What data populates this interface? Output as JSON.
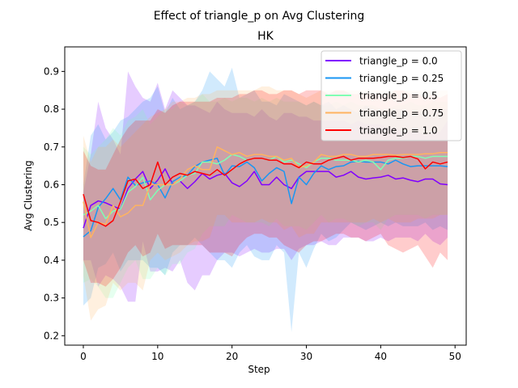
{
  "chart_data": {
    "type": "line",
    "title": "Effect of triangle_p on  Avg Clustering",
    "subtitle": "HK",
    "xlabel": "Step",
    "ylabel": "Avg Clustering",
    "xlim": [
      -2.5,
      51.5
    ],
    "ylim": [
      0.175,
      0.965
    ],
    "xticks": [
      0,
      10,
      20,
      30,
      40,
      50
    ],
    "yticks": [
      0.2,
      0.3,
      0.4,
      0.5,
      0.6,
      0.7,
      0.8,
      0.9
    ],
    "grid": false,
    "legend_position": "upper right",
    "x": [
      0,
      1,
      2,
      3,
      4,
      5,
      6,
      7,
      8,
      9,
      10,
      11,
      12,
      13,
      14,
      15,
      16,
      17,
      18,
      19,
      20,
      21,
      22,
      23,
      24,
      25,
      26,
      27,
      28,
      29,
      30,
      31,
      32,
      33,
      34,
      35,
      36,
      37,
      38,
      39,
      40,
      41,
      42,
      43,
      44,
      45,
      46,
      47,
      48,
      49
    ],
    "series": [
      {
        "name": "triangle_p = 0.0",
        "color": "#8000ff",
        "values": [
          0.485,
          0.545,
          0.557,
          0.552,
          0.543,
          0.535,
          0.59,
          0.615,
          0.635,
          0.59,
          0.612,
          0.642,
          0.602,
          0.61,
          0.59,
          0.608,
          0.63,
          0.615,
          0.625,
          0.63,
          0.605,
          0.595,
          0.61,
          0.635,
          0.6,
          0.6,
          0.62,
          0.6,
          0.59,
          0.62,
          0.635,
          0.635,
          0.635,
          0.635,
          0.62,
          0.625,
          0.635,
          0.62,
          0.615,
          0.618,
          0.62,
          0.625,
          0.615,
          0.618,
          0.612,
          0.608,
          0.615,
          0.615,
          0.602,
          0.6
        ],
        "upper": [
          0.58,
          0.68,
          0.82,
          0.75,
          0.72,
          0.68,
          0.9,
          0.86,
          0.83,
          0.82,
          0.87,
          0.8,
          0.85,
          0.83,
          0.81,
          0.81,
          0.8,
          0.79,
          0.82,
          0.8,
          0.79,
          0.79,
          0.79,
          0.78,
          0.8,
          0.78,
          0.77,
          0.79,
          0.79,
          0.78,
          0.78,
          0.77,
          0.77,
          0.77,
          0.77,
          0.77,
          0.76,
          0.77,
          0.76,
          0.76,
          0.76,
          0.75,
          0.75,
          0.74,
          0.74,
          0.74,
          0.73,
          0.74,
          0.74,
          0.77
        ],
        "lower": [
          0.4,
          0.4,
          0.33,
          0.36,
          0.35,
          0.33,
          0.29,
          0.29,
          0.45,
          0.37,
          0.37,
          0.38,
          0.37,
          0.4,
          0.34,
          0.32,
          0.36,
          0.36,
          0.4,
          0.42,
          0.42,
          0.41,
          0.42,
          0.43,
          0.42,
          0.42,
          0.43,
          0.43,
          0.4,
          0.43,
          0.44,
          0.44,
          0.45,
          0.44,
          0.44,
          0.46,
          0.46,
          0.46,
          0.45,
          0.45,
          0.46,
          0.45,
          0.46,
          0.46,
          0.46,
          0.45,
          0.47,
          0.45,
          0.44,
          0.46
        ]
      },
      {
        "name": "triangle_p = 0.25",
        "color": "#1996f3",
        "values": [
          0.462,
          0.478,
          0.54,
          0.563,
          0.59,
          0.56,
          0.62,
          0.598,
          0.605,
          0.61,
          0.6,
          0.565,
          0.608,
          0.62,
          0.625,
          0.648,
          0.66,
          0.665,
          0.67,
          0.625,
          0.65,
          0.648,
          0.66,
          0.645,
          0.61,
          0.63,
          0.645,
          0.635,
          0.55,
          0.62,
          0.6,
          0.63,
          0.65,
          0.64,
          0.648,
          0.65,
          0.66,
          0.662,
          0.66,
          0.66,
          0.66,
          0.655,
          0.665,
          0.655,
          0.648,
          0.65,
          0.65,
          0.65,
          0.65,
          0.648
        ],
        "upper": [
          0.6,
          0.73,
          0.76,
          0.72,
          0.74,
          0.77,
          0.78,
          0.8,
          0.82,
          0.83,
          0.86,
          0.79,
          0.83,
          0.8,
          0.81,
          0.82,
          0.85,
          0.9,
          0.88,
          0.86,
          0.91,
          0.83,
          0.84,
          0.85,
          0.82,
          0.82,
          0.81,
          0.84,
          0.83,
          0.82,
          0.81,
          0.82,
          0.81,
          0.82,
          0.8,
          0.81,
          0.8,
          0.79,
          0.81,
          0.8,
          0.8,
          0.79,
          0.8,
          0.8,
          0.79,
          0.79,
          0.79,
          0.8,
          0.8,
          0.8
        ],
        "lower": [
          0.28,
          0.3,
          0.38,
          0.39,
          0.42,
          0.37,
          0.4,
          0.4,
          0.4,
          0.38,
          0.38,
          0.36,
          0.42,
          0.44,
          0.44,
          0.46,
          0.44,
          0.42,
          0.4,
          0.4,
          0.38,
          0.42,
          0.44,
          0.41,
          0.4,
          0.4,
          0.44,
          0.42,
          0.21,
          0.42,
          0.38,
          0.43,
          0.47,
          0.45,
          0.46,
          0.48,
          0.5,
          0.49,
          0.48,
          0.49,
          0.5,
          0.49,
          0.5,
          0.49,
          0.49,
          0.49,
          0.5,
          0.48,
          0.49,
          0.48
        ]
      },
      {
        "name": "triangle_p = 0.5",
        "color": "#80ffb4",
        "values": [
          0.52,
          0.53,
          0.545,
          0.51,
          0.53,
          0.535,
          0.58,
          0.595,
          0.62,
          0.56,
          0.585,
          0.6,
          0.6,
          0.61,
          0.625,
          0.63,
          0.66,
          0.66,
          0.655,
          0.665,
          0.68,
          0.675,
          0.665,
          0.67,
          0.67,
          0.665,
          0.675,
          0.66,
          0.665,
          0.655,
          0.645,
          0.66,
          0.67,
          0.67,
          0.665,
          0.665,
          0.665,
          0.66,
          0.665,
          0.66,
          0.64,
          0.665,
          0.67,
          0.67,
          0.675,
          0.675,
          0.67,
          0.675,
          0.675,
          0.675
        ],
        "upper": [
          0.7,
          0.68,
          0.7,
          0.72,
          0.75,
          0.73,
          0.77,
          0.78,
          0.8,
          0.76,
          0.78,
          0.8,
          0.8,
          0.82,
          0.81,
          0.82,
          0.84,
          0.82,
          0.82,
          0.83,
          0.82,
          0.83,
          0.83,
          0.82,
          0.83,
          0.82,
          0.83,
          0.82,
          0.82,
          0.82,
          0.81,
          0.82,
          0.81,
          0.81,
          0.82,
          0.81,
          0.82,
          0.81,
          0.81,
          0.81,
          0.8,
          0.8,
          0.81,
          0.81,
          0.82,
          0.81,
          0.81,
          0.82,
          0.82,
          0.82
        ],
        "lower": [
          0.34,
          0.35,
          0.33,
          0.3,
          0.3,
          0.34,
          0.38,
          0.4,
          0.35,
          0.35,
          0.38,
          0.36,
          0.39,
          0.39,
          0.42,
          0.43,
          0.47,
          0.49,
          0.49,
          0.49,
          0.52,
          0.51,
          0.5,
          0.5,
          0.5,
          0.49,
          0.51,
          0.49,
          0.49,
          0.49,
          0.48,
          0.5,
          0.52,
          0.5,
          0.51,
          0.51,
          0.5,
          0.49,
          0.5,
          0.5,
          0.48,
          0.51,
          0.52,
          0.52,
          0.52,
          0.52,
          0.51,
          0.52,
          0.52,
          0.52
        ]
      },
      {
        "name": "triangle_p = 0.75",
        "color": "#ffb360",
        "values": [
          0.555,
          0.46,
          0.5,
          0.495,
          0.545,
          0.515,
          0.525,
          0.545,
          0.545,
          0.6,
          0.6,
          0.6,
          0.6,
          0.615,
          0.64,
          0.65,
          0.64,
          0.64,
          0.7,
          0.69,
          0.68,
          0.685,
          0.675,
          0.68,
          0.68,
          0.675,
          0.675,
          0.665,
          0.67,
          0.645,
          0.65,
          0.66,
          0.68,
          0.675,
          0.675,
          0.68,
          0.68,
          0.675,
          0.675,
          0.68,
          0.68,
          0.68,
          0.678,
          0.68,
          0.68,
          0.68,
          0.682,
          0.682,
          0.685,
          0.685
        ],
        "upper": [
          0.73,
          0.66,
          0.7,
          0.7,
          0.72,
          0.7,
          0.72,
          0.74,
          0.76,
          0.78,
          0.79,
          0.8,
          0.82,
          0.82,
          0.83,
          0.83,
          0.84,
          0.84,
          0.85,
          0.85,
          0.85,
          0.85,
          0.85,
          0.85,
          0.86,
          0.86,
          0.85,
          0.85,
          0.85,
          0.84,
          0.83,
          0.84,
          0.85,
          0.85,
          0.85,
          0.85,
          0.85,
          0.85,
          0.85,
          0.85,
          0.85,
          0.85,
          0.85,
          0.85,
          0.85,
          0.85,
          0.85,
          0.85,
          0.85,
          0.85
        ],
        "lower": [
          0.36,
          0.24,
          0.27,
          0.28,
          0.34,
          0.32,
          0.34,
          0.34,
          0.32,
          0.4,
          0.42,
          0.4,
          0.41,
          0.42,
          0.44,
          0.45,
          0.45,
          0.46,
          0.52,
          0.52,
          0.5,
          0.5,
          0.5,
          0.5,
          0.51,
          0.5,
          0.5,
          0.48,
          0.49,
          0.46,
          0.47,
          0.47,
          0.5,
          0.5,
          0.5,
          0.5,
          0.5,
          0.5,
          0.5,
          0.51,
          0.5,
          0.51,
          0.5,
          0.5,
          0.5,
          0.51,
          0.51,
          0.51,
          0.52,
          0.52
        ]
      },
      {
        "name": "triangle_p = 1.0",
        "color": "#ff0000",
        "values": [
          0.575,
          0.505,
          0.5,
          0.49,
          0.505,
          0.555,
          0.61,
          0.615,
          0.59,
          0.6,
          0.66,
          0.6,
          0.62,
          0.63,
          0.625,
          0.635,
          0.63,
          0.625,
          0.64,
          0.625,
          0.64,
          0.655,
          0.665,
          0.67,
          0.67,
          0.665,
          0.665,
          0.655,
          0.655,
          0.645,
          0.66,
          0.655,
          0.655,
          0.665,
          0.67,
          0.675,
          0.665,
          0.67,
          0.67,
          0.67,
          0.672,
          0.675,
          0.675,
          0.672,
          0.675,
          0.668,
          0.642,
          0.66,
          0.655,
          0.66
        ],
        "upper": [
          0.69,
          0.65,
          0.64,
          0.64,
          0.68,
          0.72,
          0.75,
          0.77,
          0.77,
          0.77,
          0.8,
          0.79,
          0.81,
          0.82,
          0.82,
          0.82,
          0.82,
          0.82,
          0.83,
          0.83,
          0.83,
          0.84,
          0.84,
          0.85,
          0.85,
          0.84,
          0.84,
          0.85,
          0.85,
          0.84,
          0.85,
          0.85,
          0.85,
          0.84,
          0.85,
          0.85,
          0.84,
          0.84,
          0.84,
          0.84,
          0.84,
          0.84,
          0.85,
          0.85,
          0.84,
          0.84,
          0.83,
          0.84,
          0.83,
          0.84
        ],
        "lower": [
          0.4,
          0.34,
          0.34,
          0.33,
          0.35,
          0.38,
          0.42,
          0.44,
          0.41,
          0.42,
          0.47,
          0.43,
          0.44,
          0.44,
          0.44,
          0.44,
          0.44,
          0.42,
          0.42,
          0.42,
          0.41,
          0.44,
          0.46,
          0.47,
          0.47,
          0.46,
          0.46,
          0.44,
          0.43,
          0.42,
          0.44,
          0.45,
          0.45,
          0.46,
          0.47,
          0.47,
          0.46,
          0.46,
          0.45,
          0.46,
          0.47,
          0.44,
          0.43,
          0.42,
          0.43,
          0.44,
          0.41,
          0.38,
          0.42,
          0.4
        ]
      }
    ]
  }
}
